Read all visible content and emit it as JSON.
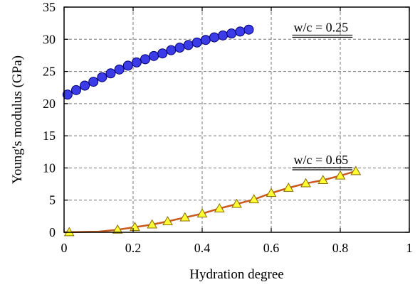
{
  "chart_data": {
    "type": "line",
    "xlabel": "Hydration degree",
    "ylabel": "Young's modulus (GPa)",
    "xlim": [
      0,
      1
    ],
    "ylim": [
      0,
      35
    ],
    "xticks": [
      0,
      0.2,
      0.4,
      0.6,
      0.8,
      1
    ],
    "xtick_labels": [
      "0",
      "0.2",
      "0.4",
      "0.6",
      "0.8",
      "1"
    ],
    "yticks": [
      0,
      5,
      10,
      15,
      20,
      25,
      30,
      35
    ],
    "ytick_labels": [
      "0",
      "5",
      "10",
      "15",
      "20",
      "25",
      "30",
      "35"
    ],
    "grid": true,
    "series": [
      {
        "name": "w/c = 0.25",
        "marker": "circle",
        "color": "#3b3be8",
        "line_color": "",
        "x": [
          0.01,
          0.035,
          0.06,
          0.085,
          0.11,
          0.135,
          0.16,
          0.185,
          0.21,
          0.235,
          0.26,
          0.285,
          0.31,
          0.335,
          0.36,
          0.385,
          0.41,
          0.435,
          0.46,
          0.485,
          0.51,
          0.535
        ],
        "y": [
          21.4,
          22.1,
          22.8,
          23.4,
          24.1,
          24.7,
          25.3,
          25.9,
          26.4,
          26.9,
          27.4,
          27.8,
          28.3,
          28.7,
          29.1,
          29.5,
          29.9,
          30.3,
          30.6,
          30.9,
          31.2,
          31.5
        ]
      },
      {
        "name": "w/c = 0.65",
        "marker": "triangle",
        "color": "#ffff33",
        "line_color": "#c85a1e",
        "x": [
          0.015,
          0.155,
          0.205,
          0.255,
          0.3,
          0.35,
          0.4,
          0.45,
          0.5,
          0.55,
          0.6,
          0.65,
          0.7,
          0.75,
          0.8,
          0.845
        ],
        "y": [
          0.0,
          0.4,
          0.8,
          1.2,
          1.7,
          2.3,
          2.9,
          3.7,
          4.4,
          5.1,
          6.1,
          6.9,
          7.6,
          8.1,
          8.8,
          9.5
        ],
        "line_x": [
          0.0,
          0.1,
          0.155,
          0.205,
          0.255,
          0.3,
          0.35,
          0.4,
          0.45,
          0.5,
          0.55,
          0.6,
          0.65,
          0.7,
          0.75,
          0.8,
          0.845
        ],
        "line_y": [
          0.0,
          0.1,
          0.4,
          0.8,
          1.2,
          1.7,
          2.3,
          2.9,
          3.7,
          4.4,
          5.1,
          6.1,
          6.9,
          7.6,
          8.1,
          8.8,
          9.5
        ]
      }
    ],
    "annotations": [
      {
        "text": "w/c = 0.25",
        "x": 0.665,
        "y": 31.2,
        "double_underline": true
      },
      {
        "text": "w/c = 0.65",
        "x": 0.665,
        "y": 10.6,
        "double_underline": true
      }
    ]
  }
}
